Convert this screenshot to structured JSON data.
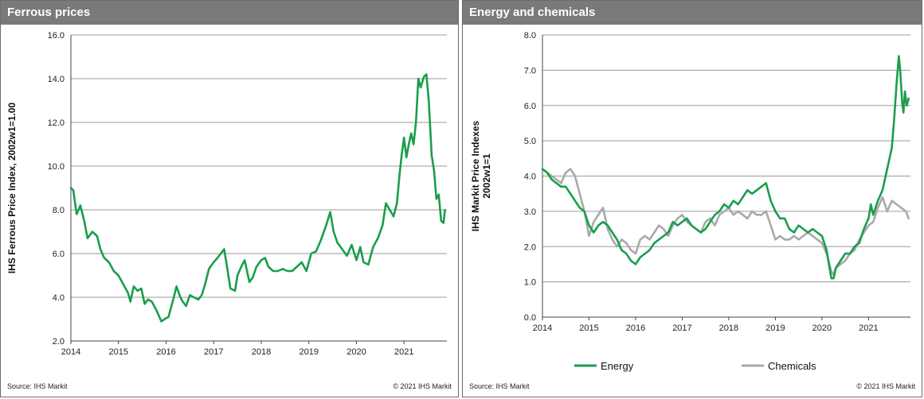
{
  "charts": {
    "left": {
      "header": "Ferrous prices",
      "source": "Source: IHS Markit",
      "copyright": "© 2021  IHS Markit"
    },
    "right": {
      "header": "Energy and chemicals",
      "source": "Source: IHS Markit",
      "copyright": "© 2021  IHS Markit"
    }
  },
  "chart_data": [
    {
      "type": "line",
      "title": "Ferrous prices",
      "ylabel": "IHS Ferrous Price Index, 2002w1=1.00",
      "xlim": [
        2014,
        2021.9
      ],
      "ylim": [
        2,
        16
      ],
      "yticks": [
        "2.0",
        "4.0",
        "6.0",
        "8.0",
        "10.0",
        "12.0",
        "14.0",
        "16.0"
      ],
      "xticks": [
        "2014",
        "2015",
        "2016",
        "2017",
        "2018",
        "2019",
        "2020",
        "2021"
      ],
      "grid": true,
      "series": [
        {
          "color": "#1a9e4b",
          "x": [
            2014.0,
            2014.05,
            2014.12,
            2014.2,
            2014.28,
            2014.35,
            2014.45,
            2014.55,
            2014.62,
            2014.7,
            2014.8,
            2014.9,
            2015.0,
            2015.1,
            2015.2,
            2015.25,
            2015.32,
            2015.4,
            2015.48,
            2015.55,
            2015.62,
            2015.7,
            2015.8,
            2015.9,
            2015.97,
            2016.05,
            2016.15,
            2016.22,
            2016.3,
            2016.35,
            2016.42,
            2016.5,
            2016.58,
            2016.68,
            2016.75,
            2016.82,
            2016.9,
            2017.0,
            2017.08,
            2017.15,
            2017.22,
            2017.28,
            2017.35,
            2017.45,
            2017.5,
            2017.58,
            2017.65,
            2017.75,
            2017.82,
            2017.9,
            2018.0,
            2018.08,
            2018.15,
            2018.25,
            2018.35,
            2018.45,
            2018.55,
            2018.65,
            2018.75,
            2018.85,
            2018.95,
            2019.05,
            2019.15,
            2019.25,
            2019.35,
            2019.45,
            2019.52,
            2019.6,
            2019.7,
            2019.8,
            2019.9,
            2020.0,
            2020.08,
            2020.15,
            2020.25,
            2020.35,
            2020.45,
            2020.55,
            2020.62,
            2020.7,
            2020.78,
            2020.85,
            2020.9,
            2020.95,
            2021.0,
            2021.05,
            2021.1,
            2021.15,
            2021.2,
            2021.25,
            2021.3,
            2021.35,
            2021.42,
            2021.47,
            2021.52,
            2021.58,
            2021.63,
            2021.68,
            2021.73,
            2021.78,
            2021.83,
            2021.86
          ],
          "y": [
            9.0,
            8.9,
            7.8,
            8.2,
            7.5,
            6.7,
            7.0,
            6.8,
            6.2,
            5.8,
            5.6,
            5.2,
            5.0,
            4.6,
            4.2,
            3.8,
            4.5,
            4.3,
            4.4,
            3.7,
            3.9,
            3.8,
            3.4,
            2.9,
            3.0,
            3.1,
            3.9,
            4.5,
            4.0,
            3.8,
            3.6,
            4.1,
            4.0,
            3.9,
            4.1,
            4.6,
            5.3,
            5.6,
            5.8,
            6.0,
            6.2,
            5.4,
            4.4,
            4.3,
            5.0,
            5.4,
            5.7,
            4.7,
            4.9,
            5.4,
            5.7,
            5.8,
            5.4,
            5.2,
            5.2,
            5.3,
            5.2,
            5.2,
            5.4,
            5.6,
            5.2,
            6.0,
            6.1,
            6.6,
            7.2,
            7.9,
            7.0,
            6.5,
            6.2,
            5.9,
            6.4,
            5.7,
            6.3,
            5.6,
            5.5,
            6.3,
            6.7,
            7.3,
            8.3,
            8.0,
            7.7,
            8.3,
            9.5,
            10.5,
            11.3,
            10.4,
            11.0,
            11.5,
            11.0,
            12.0,
            14.0,
            13.6,
            14.1,
            14.2,
            13.0,
            10.5,
            9.8,
            8.5,
            8.7,
            7.5,
            7.4,
            8.0
          ]
        }
      ]
    },
    {
      "type": "line",
      "title": "Energy and chemicals",
      "ylabel": "IHS Markit Price Indexes\n2002w1=1",
      "xlim": [
        2014,
        2021.9
      ],
      "ylim": [
        0,
        8
      ],
      "yticks": [
        "0.0",
        "1.0",
        "2.0",
        "3.0",
        "4.0",
        "5.0",
        "6.0",
        "7.0",
        "8.0"
      ],
      "xticks": [
        "2014",
        "2015",
        "2016",
        "2017",
        "2018",
        "2019",
        "2020",
        "2021"
      ],
      "grid": true,
      "legend": "bottom",
      "series": [
        {
          "name": "Chemicals",
          "color": "#a9a9a9",
          "x": [
            2014.0,
            2014.1,
            2014.2,
            2014.3,
            2014.4,
            2014.5,
            2014.6,
            2014.7,
            2014.8,
            2014.9,
            2015.0,
            2015.1,
            2015.2,
            2015.3,
            2015.4,
            2015.5,
            2015.6,
            2015.7,
            2015.8,
            2015.9,
            2016.0,
            2016.1,
            2016.2,
            2016.3,
            2016.4,
            2016.5,
            2016.6,
            2016.7,
            2016.8,
            2016.9,
            2017.0,
            2017.1,
            2017.2,
            2017.3,
            2017.4,
            2017.5,
            2017.6,
            2017.7,
            2017.8,
            2017.9,
            2018.0,
            2018.1,
            2018.2,
            2018.3,
            2018.4,
            2018.5,
            2018.6,
            2018.7,
            2018.8,
            2018.9,
            2019.0,
            2019.1,
            2019.2,
            2019.3,
            2019.4,
            2019.5,
            2019.6,
            2019.7,
            2019.8,
            2019.9,
            2020.0,
            2020.1,
            2020.2,
            2020.25,
            2020.3,
            2020.4,
            2020.5,
            2020.6,
            2020.7,
            2020.8,
            2020.9,
            2021.0,
            2021.1,
            2021.2,
            2021.3,
            2021.4,
            2021.5,
            2021.6,
            2021.7,
            2021.8,
            2021.86
          ],
          "y": [
            4.2,
            4.1,
            4.0,
            3.9,
            3.8,
            4.1,
            4.2,
            4.0,
            3.5,
            3.0,
            2.3,
            2.7,
            2.9,
            3.1,
            2.5,
            2.2,
            2.0,
            2.2,
            2.1,
            1.9,
            1.8,
            2.2,
            2.3,
            2.2,
            2.4,
            2.6,
            2.5,
            2.3,
            2.6,
            2.8,
            2.9,
            2.7,
            2.6,
            2.5,
            2.4,
            2.7,
            2.8,
            2.6,
            2.9,
            3.0,
            3.1,
            2.9,
            3.0,
            2.9,
            2.8,
            3.0,
            2.9,
            2.9,
            3.0,
            2.6,
            2.2,
            2.3,
            2.2,
            2.2,
            2.3,
            2.2,
            2.3,
            2.4,
            2.3,
            2.2,
            2.1,
            1.8,
            1.3,
            1.2,
            1.4,
            1.5,
            1.6,
            1.8,
            1.9,
            2.2,
            2.4,
            2.6,
            2.7,
            3.1,
            3.4,
            3.0,
            3.3,
            3.2,
            3.1,
            3.0,
            2.8
          ]
        },
        {
          "name": "Energy",
          "color": "#1a9e4b",
          "x": [
            2014.0,
            2014.1,
            2014.2,
            2014.3,
            2014.4,
            2014.5,
            2014.6,
            2014.7,
            2014.8,
            2014.9,
            2015.0,
            2015.1,
            2015.2,
            2015.3,
            2015.4,
            2015.5,
            2015.6,
            2015.7,
            2015.8,
            2015.9,
            2016.0,
            2016.1,
            2016.2,
            2016.3,
            2016.4,
            2016.5,
            2016.6,
            2016.7,
            2016.8,
            2016.9,
            2017.0,
            2017.1,
            2017.2,
            2017.3,
            2017.4,
            2017.5,
            2017.6,
            2017.7,
            2017.8,
            2017.9,
            2018.0,
            2018.1,
            2018.2,
            2018.3,
            2018.4,
            2018.5,
            2018.6,
            2018.7,
            2018.8,
            2018.9,
            2019.0,
            2019.1,
            2019.2,
            2019.3,
            2019.4,
            2019.5,
            2019.6,
            2019.7,
            2019.8,
            2019.9,
            2020.0,
            2020.1,
            2020.2,
            2020.25,
            2020.3,
            2020.4,
            2020.5,
            2020.6,
            2020.7,
            2020.8,
            2020.9,
            2021.0,
            2021.05,
            2021.1,
            2021.2,
            2021.3,
            2021.4,
            2021.5,
            2021.55,
            2021.6,
            2021.65,
            2021.68,
            2021.72,
            2021.75,
            2021.78,
            2021.82,
            2021.86
          ],
          "y": [
            4.2,
            4.1,
            3.9,
            3.8,
            3.7,
            3.7,
            3.5,
            3.3,
            3.1,
            3.0,
            2.6,
            2.4,
            2.6,
            2.7,
            2.6,
            2.4,
            2.2,
            1.9,
            1.8,
            1.6,
            1.5,
            1.7,
            1.8,
            1.9,
            2.1,
            2.2,
            2.3,
            2.4,
            2.7,
            2.6,
            2.7,
            2.8,
            2.6,
            2.5,
            2.4,
            2.5,
            2.7,
            2.9,
            3.0,
            3.2,
            3.1,
            3.3,
            3.2,
            3.4,
            3.6,
            3.5,
            3.6,
            3.7,
            3.8,
            3.3,
            3.0,
            2.8,
            2.8,
            2.5,
            2.4,
            2.6,
            2.5,
            2.4,
            2.5,
            2.4,
            2.3,
            1.9,
            1.1,
            1.1,
            1.4,
            1.6,
            1.8,
            1.8,
            2.0,
            2.1,
            2.5,
            2.8,
            3.2,
            2.9,
            3.3,
            3.6,
            4.2,
            4.8,
            5.6,
            6.6,
            7.4,
            7.0,
            6.1,
            5.8,
            6.4,
            6.0,
            6.2
          ]
        }
      ]
    }
  ]
}
